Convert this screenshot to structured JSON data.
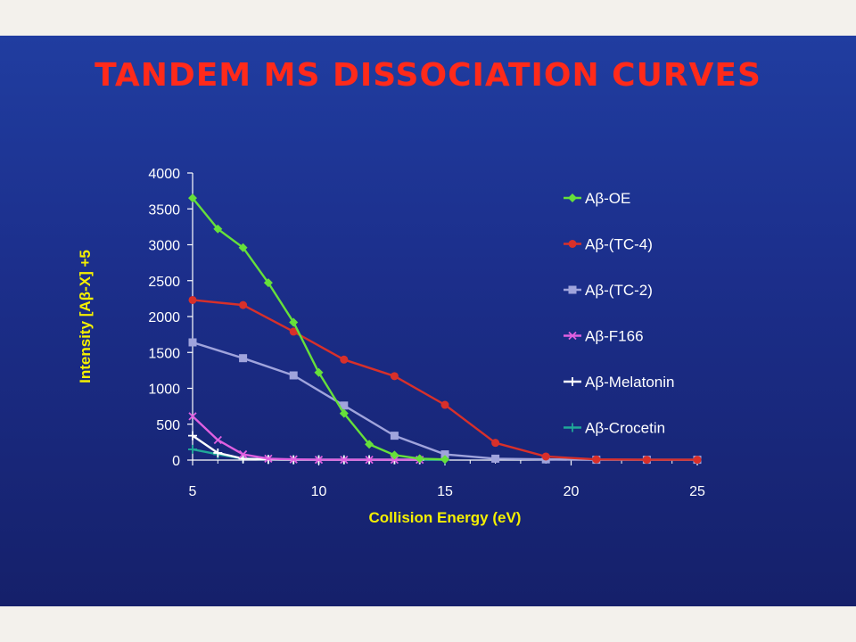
{
  "slide": {
    "title": "TANDEM MS DISSOCIATION CURVES",
    "background_top": "#203da0",
    "background_bottom": "#15206a",
    "title_color": "#ff2a1a"
  },
  "chart_data": {
    "type": "line",
    "xlabel": "Collision Energy (eV)",
    "ylabel": "Intensity [Aβ-X] +5",
    "xlim": [
      5,
      25
    ],
    "ylim": [
      0,
      4000
    ],
    "xticks": [
      5,
      10,
      15,
      20,
      25
    ],
    "yticks": [
      0,
      500,
      1000,
      1500,
      2000,
      2500,
      3000,
      3500,
      4000
    ],
    "grid": false,
    "legend_position": "right",
    "series": [
      {
        "name": "Aβ-OE",
        "color": "#66e03a",
        "marker": "diamond",
        "x": [
          5,
          6,
          7,
          8,
          9,
          10,
          11,
          12,
          13,
          14,
          15
        ],
        "y": [
          3650,
          3220,
          2960,
          2470,
          1920,
          1220,
          650,
          220,
          70,
          20,
          10
        ]
      },
      {
        "name": "Aβ-(TC-4)",
        "color": "#d8302a",
        "marker": "circle",
        "x": [
          5,
          7,
          9,
          11,
          13,
          15,
          17,
          19,
          21,
          23,
          25
        ],
        "y": [
          2230,
          2160,
          1790,
          1400,
          1170,
          770,
          240,
          50,
          10,
          5,
          5
        ]
      },
      {
        "name": "Aβ-(TC-2)",
        "color": "#a0a4dc",
        "marker": "square",
        "x": [
          5,
          7,
          9,
          11,
          13,
          15,
          17,
          19,
          21,
          23,
          25
        ],
        "y": [
          1640,
          1420,
          1180,
          760,
          340,
          80,
          20,
          10,
          5,
          5,
          5
        ]
      },
      {
        "name": "Aβ-F166",
        "color": "#e060e0",
        "marker": "x",
        "x": [
          5,
          6,
          7,
          8,
          9,
          10,
          11,
          12,
          13,
          14
        ],
        "y": [
          610,
          280,
          80,
          20,
          10,
          5,
          5,
          5,
          5,
          5
        ]
      },
      {
        "name": "Aβ-Melatonin",
        "color": "#ffffff",
        "marker": "plus",
        "x": [
          5,
          6,
          7,
          8,
          9,
          10,
          11,
          12,
          13,
          14
        ],
        "y": [
          340,
          100,
          20,
          10,
          5,
          5,
          5,
          5,
          5,
          5
        ]
      },
      {
        "name": "Aβ-Crocetin",
        "color": "#20a898",
        "marker": "plus",
        "x": [
          5,
          6,
          7,
          8,
          9,
          10,
          11,
          12,
          13,
          14,
          15
        ],
        "y": [
          150,
          80,
          20,
          10,
          5,
          5,
          5,
          5,
          5,
          5,
          5
        ]
      }
    ]
  }
}
